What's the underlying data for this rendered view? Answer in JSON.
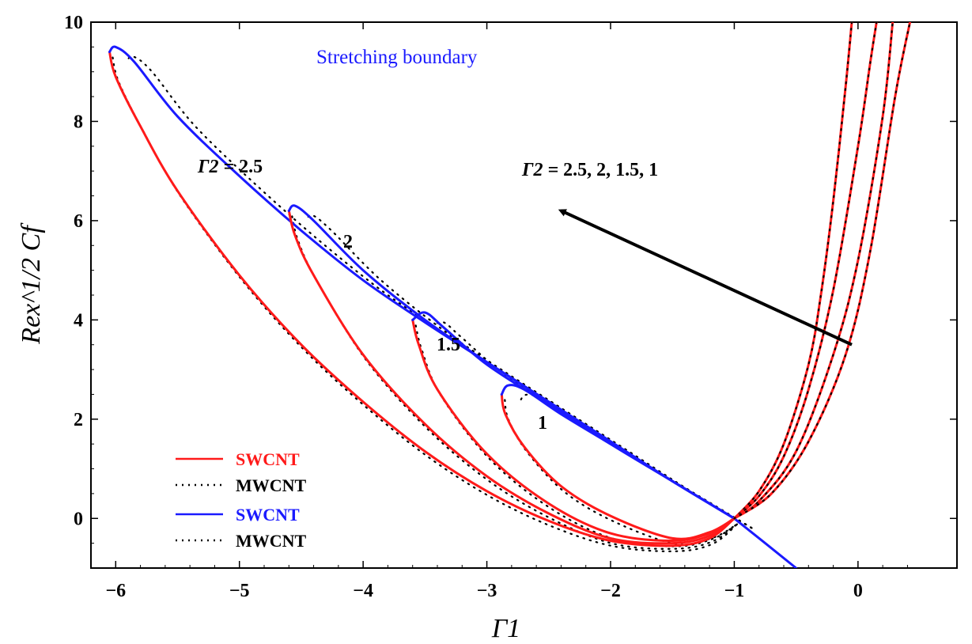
{
  "chart_data": {
    "type": "line",
    "title": "Stretching boundary",
    "xlabel": "Γ1",
    "ylabel": "Rex^1/2 Cf",
    "xlim": [
      -6.2,
      0.8
    ],
    "ylim": [
      -1,
      10
    ],
    "x_ticks": [
      -6,
      -5,
      -4,
      -3,
      -2,
      -1,
      0
    ],
    "y_ticks": [
      0,
      2,
      4,
      6,
      8,
      10
    ],
    "x_tick_labels": [
      "−6",
      "−5",
      "−4",
      "−3",
      "−2",
      "−1",
      "0"
    ],
    "y_tick_labels": [
      "0",
      "2",
      "4",
      "6",
      "8",
      "10"
    ],
    "grid": false,
    "legend_position": "bottom-left",
    "legend": [
      {
        "label": "SWCNT",
        "color": "#ff1a1a",
        "style": "solid"
      },
      {
        "label": "MWCNT",
        "color": "#000000",
        "style": "dotted"
      },
      {
        "label": "SWCNT",
        "color": "#1a1aff",
        "style": "solid"
      },
      {
        "label": "MWCNT",
        "color": "#000000",
        "style": "dotted"
      }
    ],
    "colors": {
      "red": "#ff1a1a",
      "blue": "#1a1aff",
      "black": "#000000"
    },
    "parameter_values": [
      "2.5",
      "2",
      "1.5",
      "1"
    ],
    "annotations": {
      "param_prefix": "Γ2 = ",
      "first_curve_label": "2.5",
      "curve_labels": [
        "2",
        "1.5",
        "1"
      ],
      "arrow_label": "2.5, 2, 1.5, 1"
    },
    "series": [
      {
        "param": 2.5,
        "blue": [
          [
            -1.0,
            0.0
          ],
          [
            -1.5,
            0.75
          ],
          [
            -2.0,
            1.55
          ],
          [
            -2.5,
            2.35
          ],
          [
            -3.0,
            3.15
          ],
          [
            -3.5,
            3.95
          ],
          [
            -4.0,
            4.8
          ],
          [
            -4.5,
            5.8
          ],
          [
            -5.0,
            6.9
          ],
          [
            -5.5,
            8.1
          ],
          [
            -5.85,
            9.2
          ],
          [
            -6.0,
            9.5
          ],
          [
            -6.05,
            9.4
          ]
        ],
        "red": [
          [
            -6.05,
            9.4
          ],
          [
            -6.0,
            8.9
          ],
          [
            -5.8,
            7.9
          ],
          [
            -5.5,
            6.6
          ],
          [
            -5.0,
            4.9
          ],
          [
            -4.5,
            3.5
          ],
          [
            -4.0,
            2.35
          ],
          [
            -3.5,
            1.35
          ],
          [
            -3.0,
            0.55
          ],
          [
            -2.5,
            -0.05
          ],
          [
            -2.0,
            -0.45
          ],
          [
            -1.5,
            -0.55
          ],
          [
            -1.2,
            -0.4
          ],
          [
            -1.0,
            0.0
          ]
        ]
      },
      {
        "param": 2.0,
        "blue": [
          [
            -1.0,
            0.0
          ],
          [
            -1.5,
            0.75
          ],
          [
            -2.0,
            1.55
          ],
          [
            -2.5,
            2.35
          ],
          [
            -3.0,
            3.15
          ],
          [
            -3.5,
            4.0
          ],
          [
            -4.0,
            5.0
          ],
          [
            -4.4,
            6.0
          ],
          [
            -4.55,
            6.3
          ],
          [
            -4.6,
            6.2
          ]
        ],
        "red": [
          [
            -4.6,
            6.2
          ],
          [
            -4.55,
            5.7
          ],
          [
            -4.4,
            4.9
          ],
          [
            -4.0,
            3.3
          ],
          [
            -3.5,
            1.9
          ],
          [
            -3.0,
            0.85
          ],
          [
            -2.5,
            0.1
          ],
          [
            -2.0,
            -0.4
          ],
          [
            -1.5,
            -0.5
          ],
          [
            -1.2,
            -0.35
          ],
          [
            -1.0,
            0.0
          ]
        ]
      },
      {
        "param": 1.5,
        "blue": [
          [
            -1.0,
            0.0
          ],
          [
            -1.5,
            0.75
          ],
          [
            -2.0,
            1.5
          ],
          [
            -2.5,
            2.3
          ],
          [
            -3.0,
            3.1
          ],
          [
            -3.35,
            3.85
          ],
          [
            -3.5,
            4.15
          ],
          [
            -3.6,
            4.0
          ]
        ],
        "red": [
          [
            -3.6,
            4.0
          ],
          [
            -3.55,
            3.5
          ],
          [
            -3.4,
            2.6
          ],
          [
            -3.0,
            1.3
          ],
          [
            -2.5,
            0.3
          ],
          [
            -2.0,
            -0.3
          ],
          [
            -1.5,
            -0.45
          ],
          [
            -1.2,
            -0.3
          ],
          [
            -1.0,
            0.0
          ]
        ]
      },
      {
        "param": 1.0,
        "blue": [
          [
            -1.0,
            0.0
          ],
          [
            -1.5,
            0.75
          ],
          [
            -2.0,
            1.5
          ],
          [
            -2.4,
            2.1
          ],
          [
            -2.7,
            2.6
          ],
          [
            -2.83,
            2.68
          ],
          [
            -2.88,
            2.5
          ]
        ],
        "red": [
          [
            -2.88,
            2.5
          ],
          [
            -2.85,
            2.1
          ],
          [
            -2.7,
            1.45
          ],
          [
            -2.4,
            0.65
          ],
          [
            -2.0,
            0.05
          ],
          [
            -1.5,
            -0.4
          ],
          [
            -1.2,
            -0.28
          ],
          [
            -1.0,
            0.0
          ]
        ]
      }
    ],
    "shared_blue_tail": [
      [
        -1.0,
        0.0
      ],
      [
        -0.5,
        -1.0
      ]
    ],
    "red_right_branches": [
      {
        "param": 2.5,
        "points": [
          [
            -1.0,
            0.0
          ],
          [
            -0.8,
            0.55
          ],
          [
            -0.6,
            1.5
          ],
          [
            -0.4,
            3.1
          ],
          [
            -0.3,
            4.5
          ],
          [
            -0.2,
            6.4
          ],
          [
            -0.1,
            8.7
          ],
          [
            -0.05,
            10.0
          ]
        ]
      },
      {
        "param": 2.0,
        "points": [
          [
            -1.0,
            0.0
          ],
          [
            -0.8,
            0.45
          ],
          [
            -0.6,
            1.25
          ],
          [
            -0.4,
            2.6
          ],
          [
            -0.2,
            4.6
          ],
          [
            0.0,
            7.5
          ],
          [
            0.1,
            9.2
          ],
          [
            0.15,
            10.0
          ]
        ]
      },
      {
        "param": 1.5,
        "points": [
          [
            -1.0,
            0.0
          ],
          [
            -0.8,
            0.35
          ],
          [
            -0.5,
            1.35
          ],
          [
            -0.2,
            3.3
          ],
          [
            0.0,
            5.2
          ],
          [
            0.2,
            8.1
          ],
          [
            0.28,
            10.0
          ]
        ]
      },
      {
        "param": 1.0,
        "points": [
          [
            -1.0,
            0.0
          ],
          [
            -0.7,
            0.5
          ],
          [
            -0.4,
            1.55
          ],
          [
            -0.1,
            3.3
          ],
          [
            0.1,
            5.4
          ],
          [
            0.3,
            8.5
          ],
          [
            0.42,
            10.0
          ]
        ]
      }
    ],
    "arrow": {
      "from": [
        -0.05,
        3.5
      ],
      "to": [
        -2.4,
        6.2
      ]
    }
  }
}
